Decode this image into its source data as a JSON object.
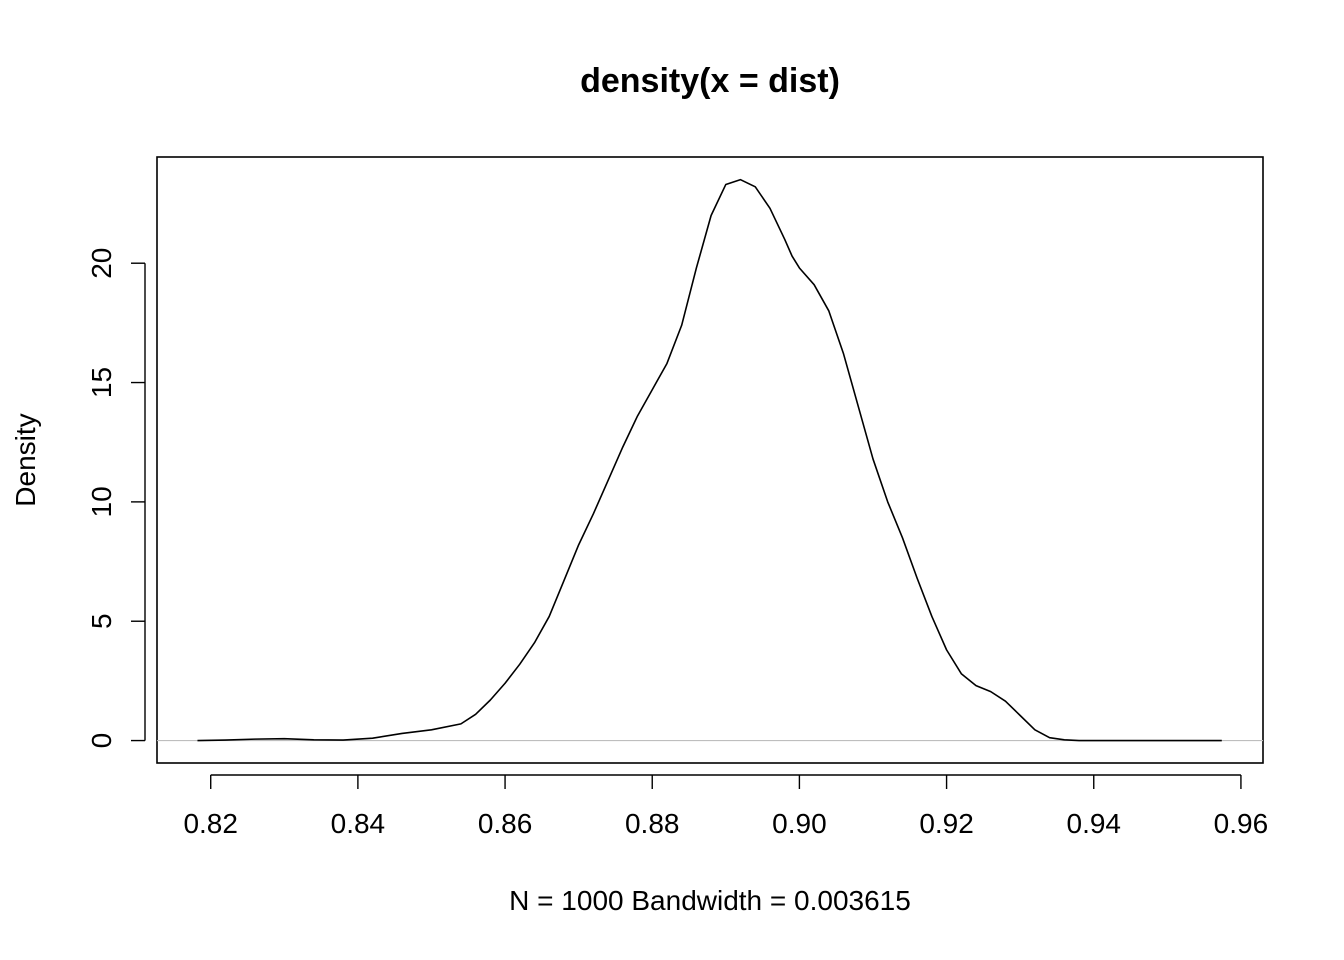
{
  "chart_data": {
    "type": "line",
    "title": "density(x = dist)",
    "xlabel": "N = 1000   Bandwidth = 0.003615",
    "ylabel": "Density",
    "xlim": [
      0.8127,
      0.963
    ],
    "ylim": [
      -0.94,
      24.45
    ],
    "x_ticks": [
      0.82,
      0.84,
      0.86,
      0.88,
      0.9,
      0.92,
      0.94,
      0.96
    ],
    "x_tick_labels": [
      "0.82",
      "0.84",
      "0.86",
      "0.88",
      "0.90",
      "0.92",
      "0.94",
      "0.96"
    ],
    "y_ticks": [
      0,
      5,
      10,
      15,
      20
    ],
    "y_tick_labels": [
      "0",
      "5",
      "10",
      "15",
      "20"
    ],
    "grid": false,
    "zero_baseline": true,
    "colors": {
      "line": "#000000",
      "baseline": "#bebebe"
    },
    "series": [
      {
        "x": [
          0.8182,
          0.822,
          0.826,
          0.83,
          0.834,
          0.838,
          0.842,
          0.846,
          0.85,
          0.854,
          0.856,
          0.858,
          0.86,
          0.862,
          0.864,
          0.866,
          0.868,
          0.87,
          0.872,
          0.874,
          0.876,
          0.878,
          0.88,
          0.882,
          0.884,
          0.886,
          0.888,
          0.89,
          0.892,
          0.894,
          0.896,
          0.898,
          0.899,
          0.9,
          0.902,
          0.904,
          0.906,
          0.908,
          0.91,
          0.912,
          0.914,
          0.916,
          0.918,
          0.92,
          0.922,
          0.924,
          0.926,
          0.928,
          0.93,
          0.932,
          0.934,
          0.936,
          0.938,
          0.94,
          0.942,
          0.944,
          0.946,
          0.948,
          0.95,
          0.952,
          0.954,
          0.9574
        ],
        "y": [
          0.0,
          0.02,
          0.06,
          0.08,
          0.03,
          0.02,
          0.1,
          0.3,
          0.45,
          0.7,
          1.1,
          1.7,
          2.4,
          3.2,
          4.1,
          5.2,
          6.7,
          8.2,
          9.5,
          10.9,
          12.3,
          13.6,
          14.7,
          15.8,
          17.4,
          19.8,
          22.0,
          23.3,
          23.5,
          23.2,
          22.3,
          21.0,
          20.3,
          19.8,
          19.1,
          18.0,
          16.2,
          14.0,
          11.8,
          10.0,
          8.5,
          6.8,
          5.2,
          3.8,
          2.8,
          2.3,
          2.05,
          1.65,
          1.05,
          0.45,
          0.12,
          0.03,
          0.0,
          0.0,
          0.0,
          0.0,
          0.0,
          0.0,
          0.0,
          0.0,
          0.0,
          0.0
        ]
      }
    ]
  }
}
